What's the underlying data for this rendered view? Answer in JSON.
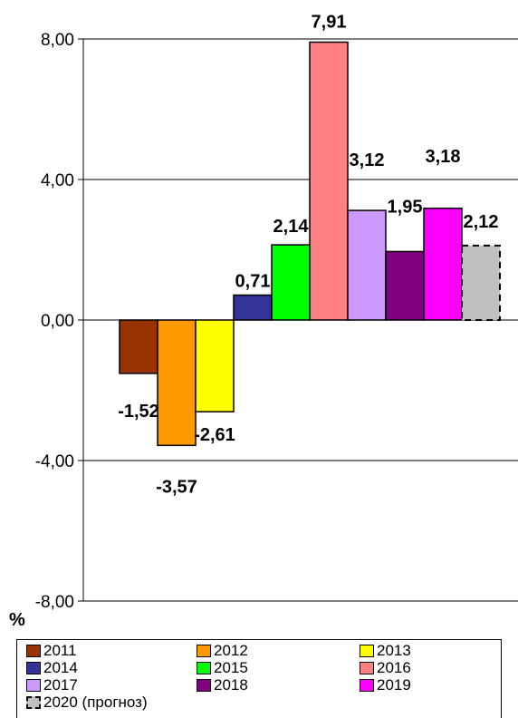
{
  "chart_data": {
    "type": "bar",
    "unit_label": "%",
    "ylim": [
      -8,
      8
    ],
    "yticks": [
      "8,00",
      "4,00",
      "0,00",
      "-4,00",
      "-8,00"
    ],
    "ytick_values": [
      8,
      4,
      0,
      -4,
      -8
    ],
    "grid": true,
    "legend_position": "bottom",
    "categories": [
      "2011",
      "2012",
      "2013",
      "2014",
      "2015",
      "2016",
      "2017",
      "2018",
      "2019",
      "2020 (прогноз)"
    ],
    "values": [
      -1.52,
      -3.57,
      -2.61,
      0.71,
      2.14,
      7.91,
      3.12,
      1.95,
      3.18,
      2.12
    ],
    "value_labels": [
      "-1,52",
      "-3,57",
      "-2,61",
      "0,71",
      "2,14",
      "7,91",
      "3,12",
      "1,95",
      "3,18",
      "2,12"
    ],
    "colors": [
      "#993300",
      "#FF9900",
      "#FFFF00",
      "#333399",
      "#00FF00",
      "#FF8080",
      "#CC99FF",
      "#800080",
      "#FF00FF",
      "#C0C0C0"
    ],
    "forecast_index": 9
  }
}
